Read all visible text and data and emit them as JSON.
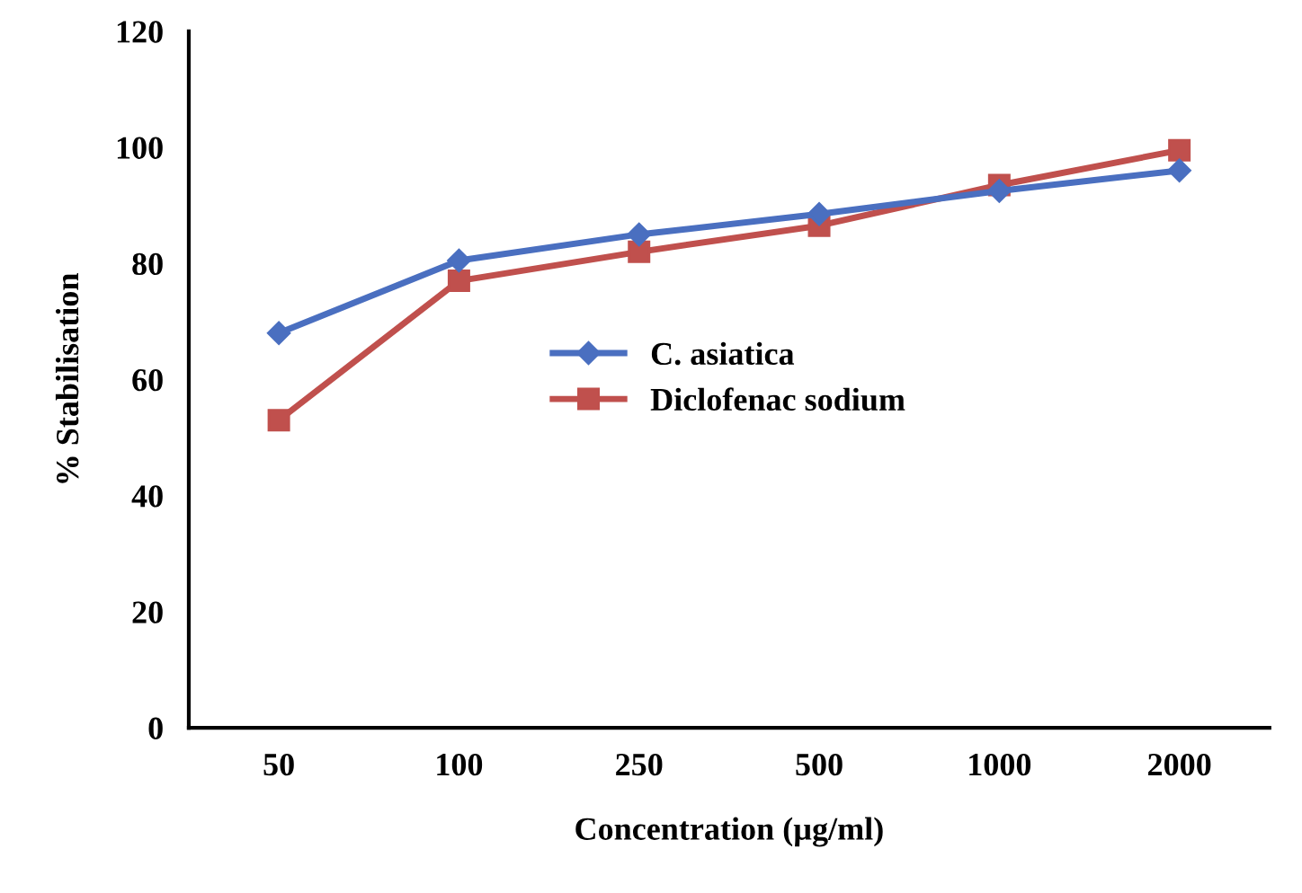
{
  "chart_data": {
    "type": "line",
    "xlabel": "Concentration (µg/ml)",
    "ylabel": "% Stabilisation",
    "categories": [
      "50",
      "100",
      "250",
      "500",
      "1000",
      "2000"
    ],
    "series": [
      {
        "name": "C. asiatica",
        "color": "#4a6fc0",
        "marker": "diamond",
        "values": [
          68,
          80.5,
          85,
          88.5,
          92.5,
          96
        ]
      },
      {
        "name": "Diclofenac sodium",
        "color": "#c0504d",
        "marker": "square",
        "values": [
          53,
          77,
          82,
          86.5,
          93.5,
          99.5
        ]
      }
    ],
    "ylim": [
      0,
      120
    ],
    "yticks": [
      0,
      20,
      40,
      60,
      80,
      100,
      120
    ],
    "grid": false,
    "legend": "center"
  }
}
